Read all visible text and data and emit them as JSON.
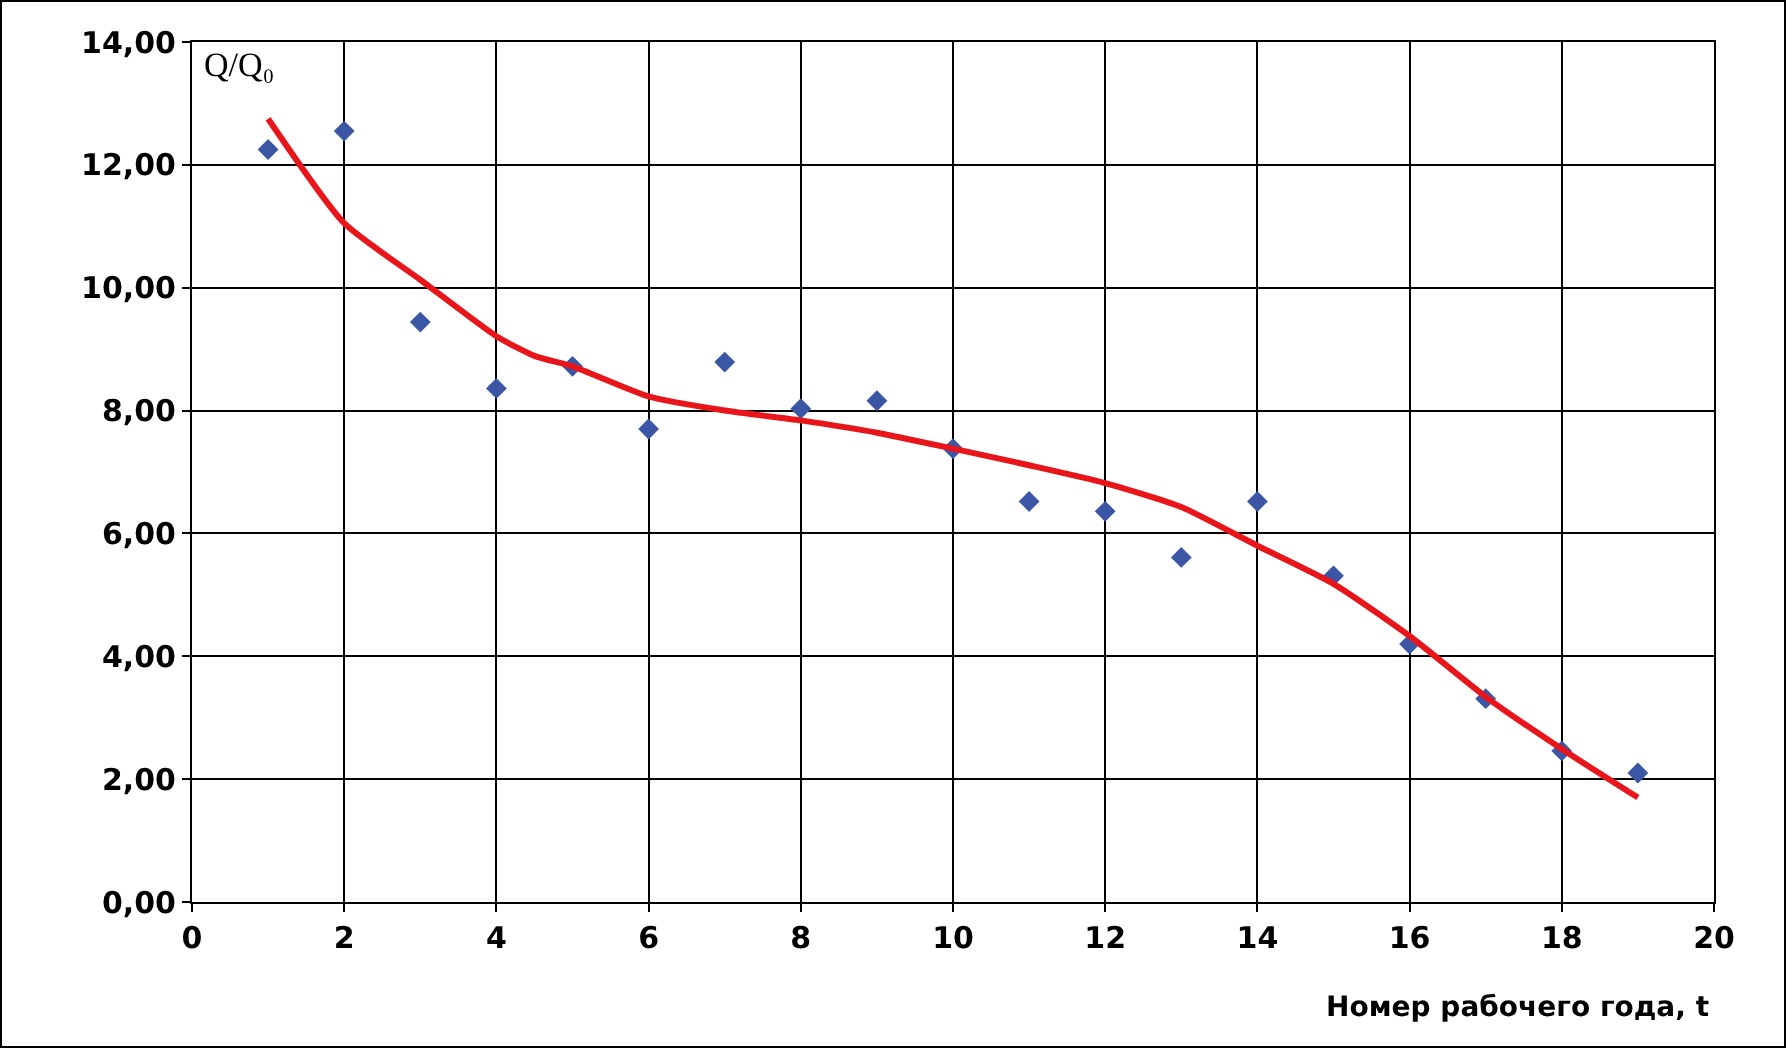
{
  "chart_data": {
    "type": "scatter",
    "xlabel": "Номер рабочего года, t",
    "ylabel": "Q/Q₀",
    "xlim": [
      0,
      20
    ],
    "xticks": [
      0,
      2,
      4,
      6,
      8,
      10,
      12,
      14,
      16,
      18,
      20
    ],
    "ylim": [
      0,
      14
    ],
    "yticks": [
      {
        "value": 0,
        "label": "0,00"
      },
      {
        "value": 2,
        "label": "2,00"
      },
      {
        "value": 4,
        "label": "4,00"
      },
      {
        "value": 6,
        "label": "6,00"
      },
      {
        "value": 8,
        "label": "8,00"
      },
      {
        "value": 10,
        "label": "10,00"
      },
      {
        "value": 12,
        "label": "12,00"
      },
      {
        "value": 14,
        "label": "14,00"
      }
    ],
    "grid": true,
    "legend": false,
    "series": [
      {
        "marker": "diamond",
        "color": "#3a56a5",
        "x": [
          1,
          2,
          3,
          4,
          5,
          6,
          7,
          8,
          9,
          10,
          11,
          12,
          13,
          14,
          15,
          16,
          17,
          18,
          19
        ],
        "values": [
          12.25,
          12.55,
          9.44,
          8.36,
          8.72,
          7.7,
          8.79,
          8.03,
          8.16,
          7.38,
          6.52,
          6.36,
          5.61,
          6.52,
          5.31,
          4.2,
          3.31,
          2.46,
          2.1
        ]
      },
      {
        "type": "line",
        "color": "#e8161b",
        "line_style": "solid",
        "x": [
          1,
          2,
          3,
          4,
          4.5,
          5,
          6,
          7,
          8,
          9,
          10,
          11,
          12,
          13,
          14,
          15,
          16,
          17,
          18,
          19
        ],
        "values": [
          12.75,
          11.05,
          10.13,
          9.21,
          8.89,
          8.72,
          8.23,
          8.0,
          7.84,
          7.64,
          7.38,
          7.11,
          6.82,
          6.43,
          5.8,
          5.18,
          4.33,
          3.34,
          2.49,
          1.7
        ]
      }
    ]
  }
}
